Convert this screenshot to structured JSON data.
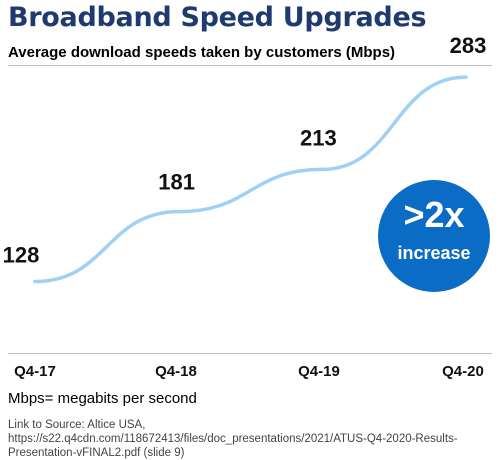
{
  "header": {
    "title": "Broadband Speed Upgrades",
    "subtitle": "Average download speeds taken by customers (Mbps)"
  },
  "badge": {
    "big": ">2x",
    "small": "increase",
    "color": "#0a6cc5"
  },
  "footer": {
    "note": "Mbps= megabits per second",
    "source": "Link to Source: Altice USA, https://s22.q4cdn.com/118672413/files/doc_presentations/2021/ATUS-Q4-2020-Results-Presentation-vFINAL2.pdf (slide 9)"
  },
  "colors": {
    "title": "#1f3a6e",
    "line": "#9fd0f5"
  },
  "chart_data": {
    "type": "line",
    "title": "Average download speeds taken by customers (Mbps)",
    "categories": [
      "Q4-17",
      "Q4-18",
      "Q4-19",
      "Q4-20"
    ],
    "series": [
      {
        "values": [
          128,
          181,
          213,
          283
        ],
        "labels": [
          "128",
          "181",
          "213",
          "283"
        ]
      }
    ],
    "ylim": [
      95,
      296
    ],
    "grid": false,
    "legend": "none"
  }
}
